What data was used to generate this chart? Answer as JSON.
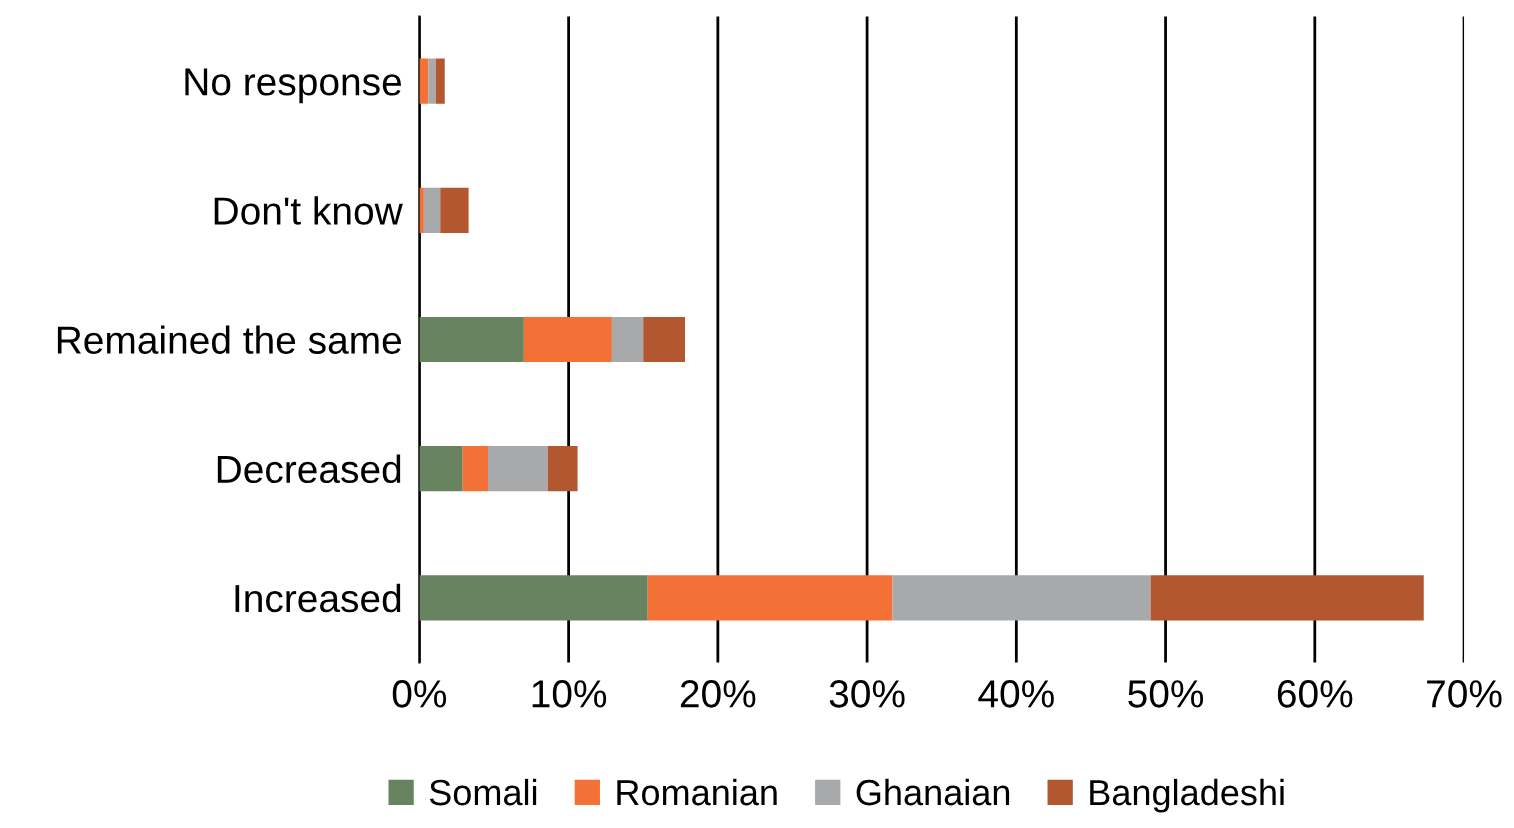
{
  "chart_data": {
    "type": "bar",
    "orientation": "horizontal",
    "stacked": true,
    "categories": [
      "No response",
      "Don't know",
      "Remained the same",
      "Decreased",
      "Increased"
    ],
    "series": [
      {
        "name": "Somali",
        "color": "#68835f",
        "values": [
          0,
          0,
          7.0,
          2.9,
          15.3
        ]
      },
      {
        "name": "Romanian",
        "color": "#f37037",
        "values": [
          0.6,
          0.3,
          5.9,
          1.7,
          16.4
        ]
      },
      {
        "name": "Ghanaian",
        "color": "#a8a9ab",
        "values": [
          0.5,
          1.1,
          2.1,
          4.0,
          17.3
        ]
      },
      {
        "name": "Bangladeshi",
        "color": "#b25730",
        "values": [
          0.6,
          1.9,
          2.8,
          2.0,
          18.3
        ]
      }
    ],
    "xlim": [
      0,
      70
    ],
    "xticks": [
      {
        "value": 0,
        "label": "0%"
      },
      {
        "value": 10,
        "label": "10%"
      },
      {
        "value": 20,
        "label": "20%"
      },
      {
        "value": 30,
        "label": "30%"
      },
      {
        "value": 40,
        "label": "40%"
      },
      {
        "value": 50,
        "label": "50%"
      },
      {
        "value": 60,
        "label": "60%"
      },
      {
        "value": 70,
        "label": "70%"
      }
    ],
    "grid": "x",
    "legend": "bottom"
  }
}
